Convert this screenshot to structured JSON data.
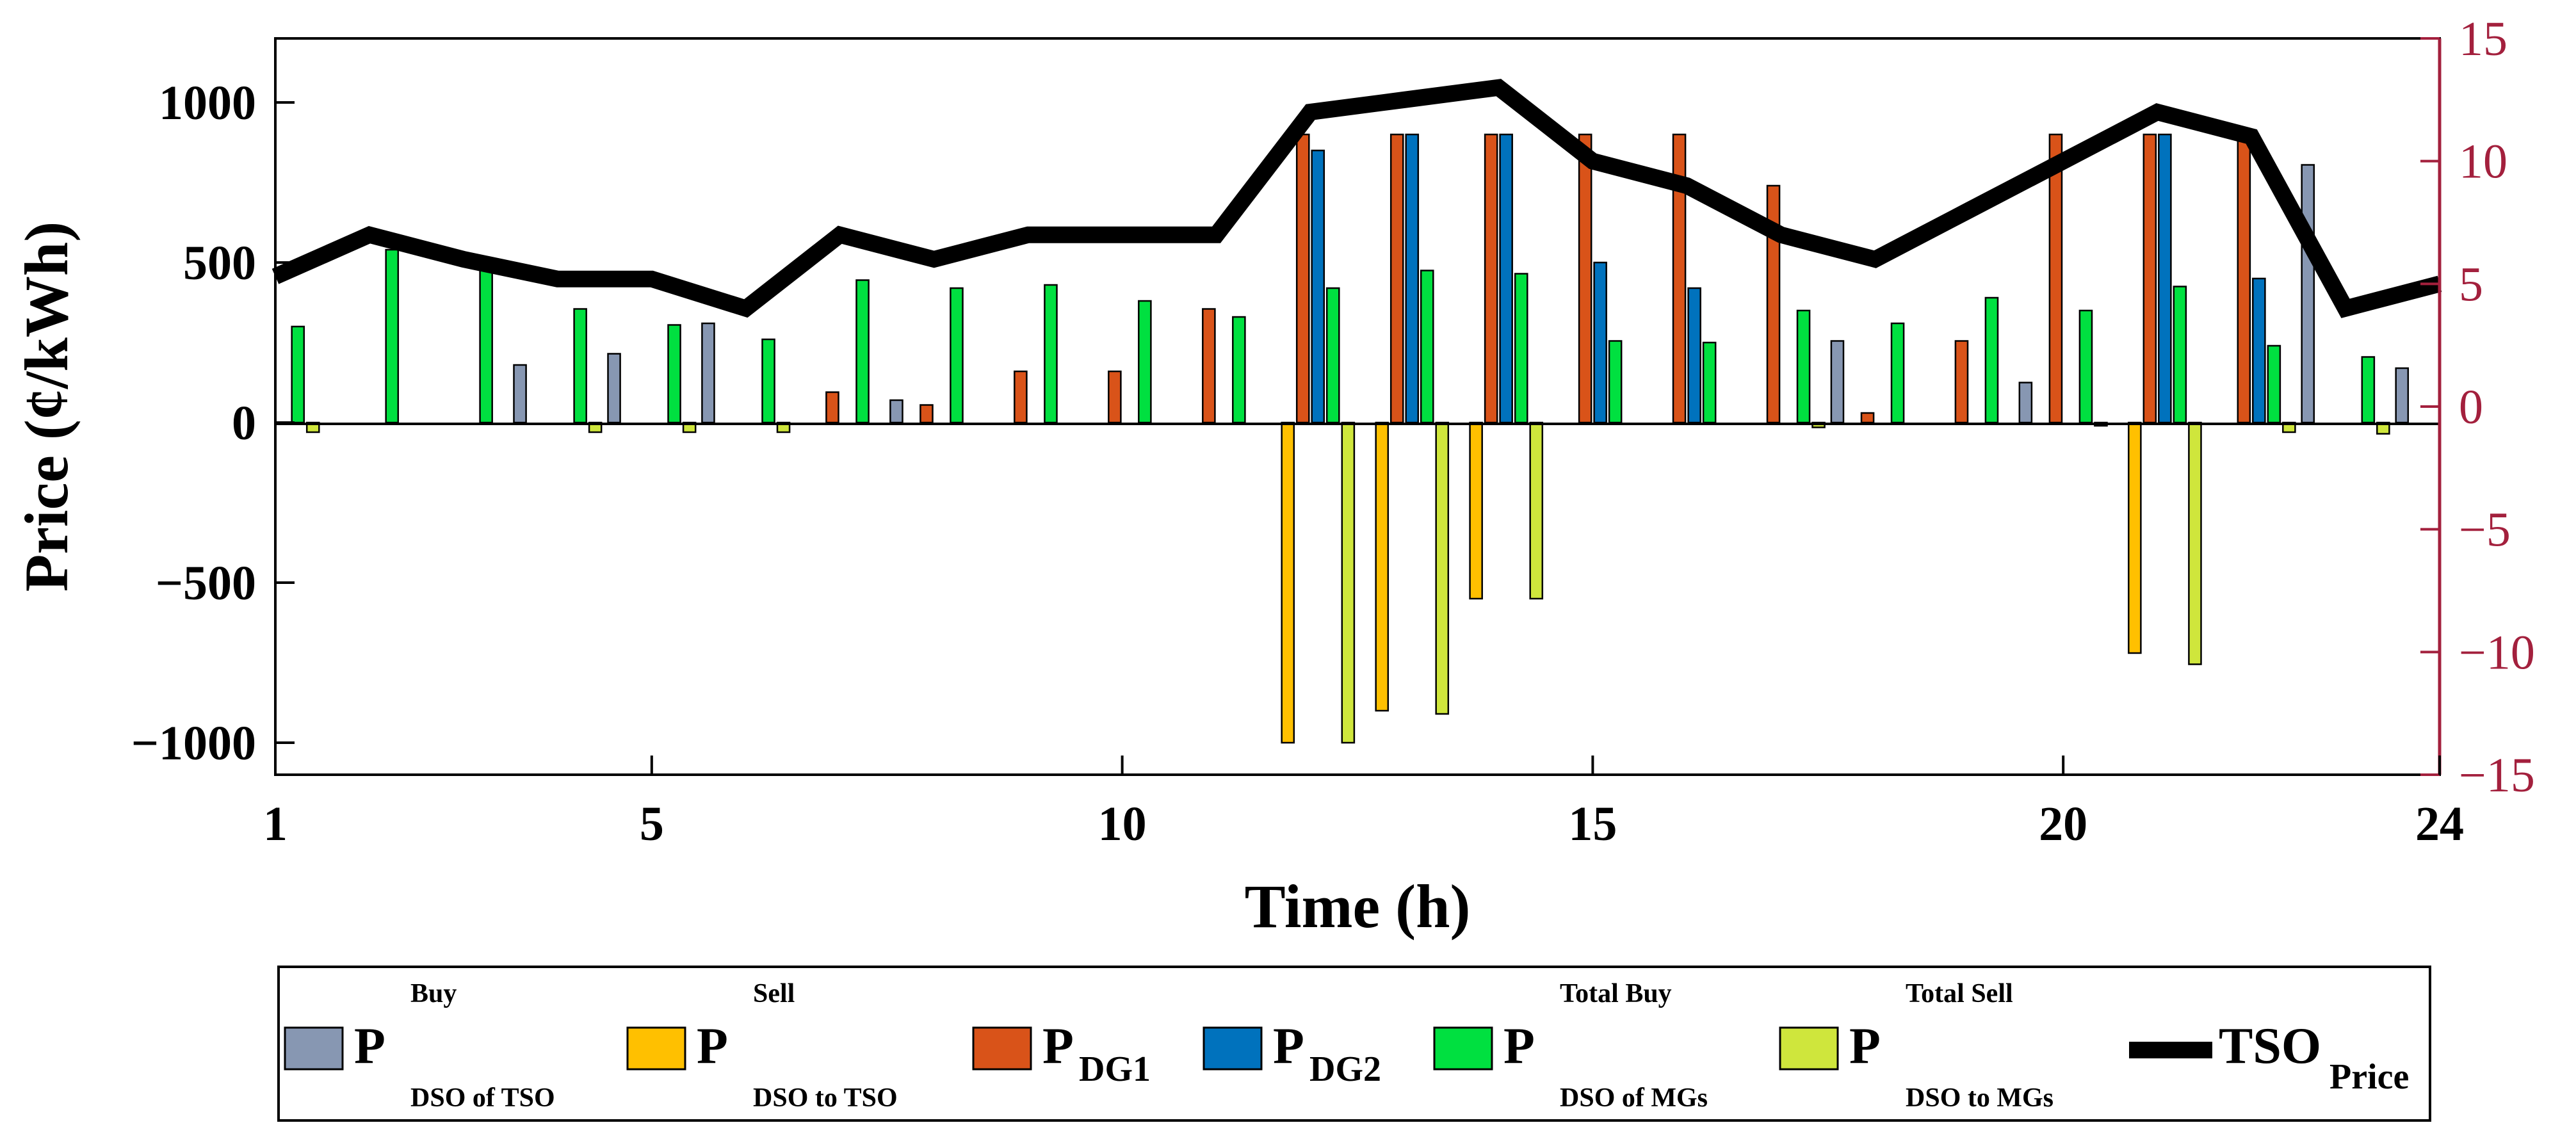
{
  "chart_data": {
    "type": "bar",
    "xlabel": "Time (h)",
    "ylabel": "Price (¢/kWh)",
    "x_ticks": [
      "1",
      "5",
      "10",
      "15",
      "20",
      "24"
    ],
    "x_tick_values": [
      1,
      5,
      10,
      15,
      20,
      24
    ],
    "xlim": [
      1,
      24
    ],
    "ylim": [
      -1100,
      1200
    ],
    "y_ticks": [
      "−1000",
      "−500",
      "0",
      "500",
      "1000"
    ],
    "y_tick_values": [
      -1000,
      -500,
      0,
      500,
      1000
    ],
    "y2lim": [
      -15,
      15
    ],
    "y2_ticks": [
      "−15",
      "−10",
      "−5",
      "0",
      "5",
      "10",
      "15"
    ],
    "y2_tick_values": [
      -15,
      -10,
      -5,
      0,
      5,
      10,
      15
    ],
    "hours": [
      1,
      2,
      3,
      4,
      5,
      6,
      7,
      8,
      9,
      10,
      11,
      12,
      13,
      14,
      15,
      16,
      17,
      18,
      19,
      20,
      21,
      22,
      23,
      24
    ],
    "series": [
      {
        "key": "buy_tso",
        "color": "#8797b2",
        "legend_main": "P",
        "legend_sup": "Buy",
        "legend_sub": "DSO of TSO",
        "values": [
          0,
          0,
          0,
          180,
          215,
          310,
          0,
          70,
          0,
          0,
          0,
          0,
          0,
          0,
          0,
          0,
          0,
          255,
          0,
          125,
          0,
          0,
          805,
          170
        ]
      },
      {
        "key": "sell_tso",
        "color": "#ffc000",
        "legend_main": "P",
        "legend_sup": "Sell",
        "legend_sub": "DSO to TSO",
        "values": [
          0,
          0,
          0,
          0,
          0,
          0,
          0,
          0,
          0,
          0,
          0,
          -1000,
          -900,
          -550,
          0,
          0,
          0,
          0,
          0,
          0,
          -720,
          0,
          0,
          0
        ]
      },
      {
        "key": "dg1",
        "color": "#d95319",
        "legend_main": "P",
        "legend_sup": "",
        "legend_sub": "DG1",
        "values": [
          0,
          0,
          0,
          0,
          0,
          0,
          95,
          55,
          160,
          160,
          355,
          900,
          900,
          900,
          900,
          900,
          740,
          30,
          255,
          900,
          900,
          900,
          0,
          0
        ]
      },
      {
        "key": "dg2",
        "color": "#0072bd",
        "legend_main": "P",
        "legend_sup": "",
        "legend_sub": "DG2",
        "values": [
          0,
          0,
          0,
          0,
          0,
          0,
          0,
          0,
          0,
          0,
          0,
          850,
          900,
          900,
          500,
          420,
          0,
          0,
          0,
          0,
          900,
          450,
          0,
          0
        ]
      },
      {
        "key": "buy_mgs",
        "color": "#00e040",
        "legend_main": "P",
        "legend_sup": "Total Buy",
        "legend_sub": "DSO of MGs",
        "values": [
          300,
          540,
          480,
          355,
          305,
          260,
          445,
          420,
          430,
          380,
          330,
          420,
          475,
          465,
          255,
          250,
          350,
          310,
          390,
          350,
          425,
          240,
          205,
          0
        ]
      },
      {
        "key": "sell_mgs",
        "color": "#cfe63c",
        "legend_main": "P",
        "legend_sup": "Total Sell",
        "legend_sub": "DSO to MGs",
        "values": [
          -30,
          0,
          0,
          -30,
          -30,
          -30,
          0,
          0,
          0,
          0,
          0,
          -1000,
          -910,
          -550,
          0,
          0,
          -15,
          0,
          0,
          -10,
          -755,
          -30,
          -35,
          0
        ]
      }
    ],
    "line_series": {
      "key": "tso_price",
      "color": "#000000",
      "legend_main": "TSO",
      "legend_sub": "Price",
      "axis": "right",
      "x": [
        1,
        2,
        3,
        4,
        5,
        6,
        7,
        8,
        9,
        10,
        11,
        12,
        13,
        14,
        15,
        16,
        17,
        18,
        19,
        20,
        21,
        22,
        23,
        24
      ],
      "values": [
        5.3,
        7,
        6,
        5.2,
        5.2,
        4,
        7,
        6,
        7,
        7,
        7,
        12,
        12.5,
        13,
        10,
        9,
        7,
        6,
        8,
        10,
        12,
        11,
        4,
        5
      ]
    }
  }
}
